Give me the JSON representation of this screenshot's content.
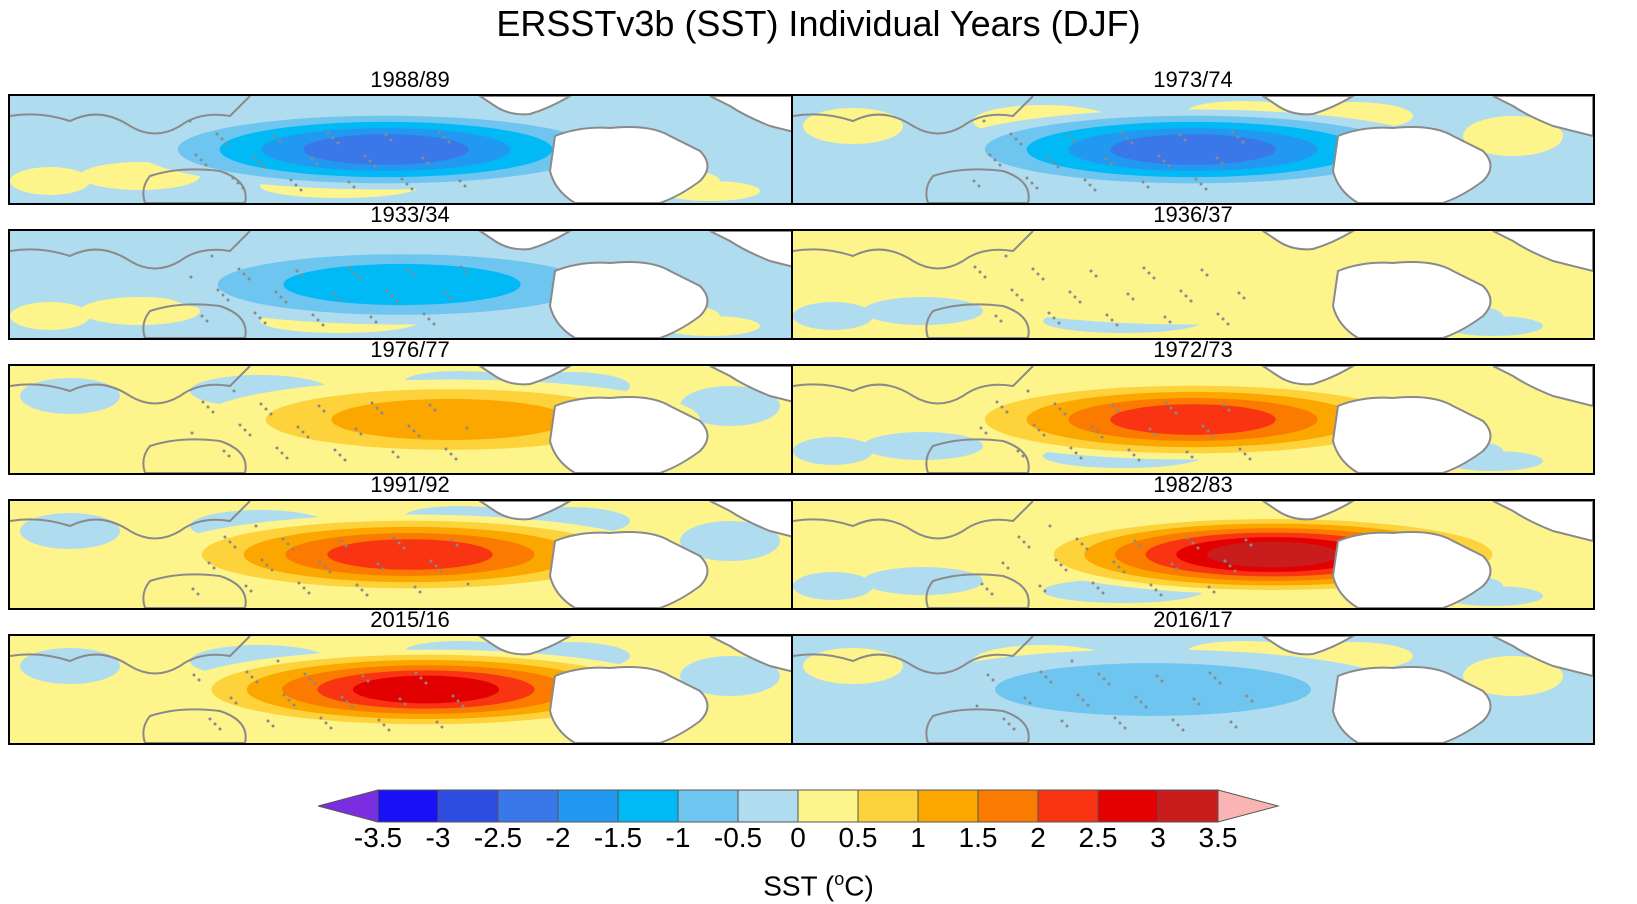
{
  "title": "ERSSTv3b (SST) Individual Years (DJF)",
  "panels": [
    {
      "label": "1988/89",
      "anomaly": "cold",
      "strength": 2.5,
      "center_lon_frac": 0.47
    },
    {
      "label": "1973/74",
      "anomaly": "cold",
      "strength": 2.5,
      "center_lon_frac": 0.5
    },
    {
      "label": "1933/34",
      "anomaly": "cold",
      "strength": 1.5,
      "center_lon_frac": 0.49
    },
    {
      "label": "1936/37",
      "anomaly": "weak",
      "strength": 0.5,
      "center_lon_frac": 0.5
    },
    {
      "label": "1976/77",
      "anomaly": "warm",
      "strength": 1.5,
      "center_lon_frac": 0.55
    },
    {
      "label": "1972/73",
      "anomaly": "warm",
      "strength": 2.5,
      "center_lon_frac": 0.5
    },
    {
      "label": "1991/92",
      "anomaly": "warm",
      "strength": 2.5,
      "center_lon_frac": 0.5
    },
    {
      "label": "1982/83",
      "anomaly": "warm",
      "strength": 3.5,
      "center_lon_frac": 0.6
    },
    {
      "label": "2015/16",
      "anomaly": "warm",
      "strength": 3.0,
      "center_lon_frac": 0.52
    },
    {
      "label": "2016/17",
      "anomaly": "cold",
      "strength": 1.0,
      "center_lon_frac": 0.45
    }
  ],
  "colorbar": {
    "title_main": "SST (",
    "title_sup": "o",
    "title_end": "C)",
    "ticks": [
      "-3.5",
      "-3",
      "-2.5",
      "-2",
      "-1.5",
      "-1",
      "-0.5",
      "0",
      "0.5",
      "1",
      "1.5",
      "2",
      "2.5",
      "3",
      "3.5"
    ],
    "colors": [
      "#7a2ee0",
      "#1a10f5",
      "#2d4de0",
      "#3a78ea",
      "#2299f0",
      "#00b9f5",
      "#6ec5ef",
      "#b0dcf0",
      "#fdf58c",
      "#fdd23a",
      "#fba700",
      "#fb7a00",
      "#f83412",
      "#e20000",
      "#c91c1c",
      "#fbb4b4"
    ]
  }
}
